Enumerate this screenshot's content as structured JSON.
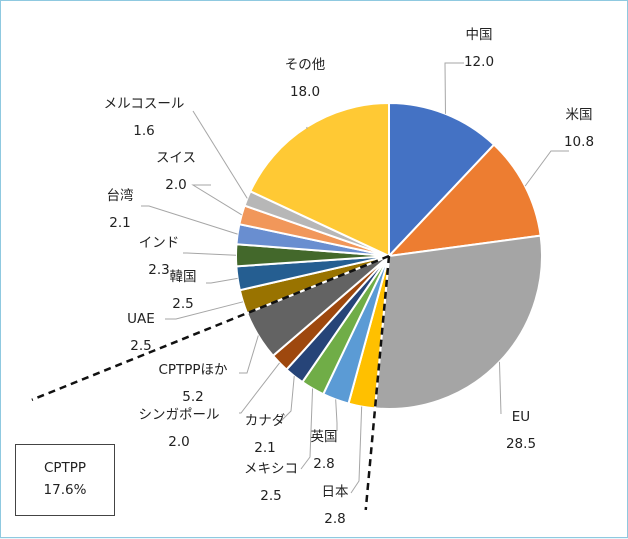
{
  "chart_data": {
    "type": "pie",
    "start_angle_deg": 0,
    "direction": "clockwise",
    "slices": [
      {
        "label": "中国",
        "value": "12.0",
        "color": "#4472c4"
      },
      {
        "label": "米国",
        "value": "10.8",
        "color": "#ed7d31"
      },
      {
        "label": "EU",
        "value": "28.5",
        "color": "#a5a5a5"
      },
      {
        "label": "日本",
        "value": "2.8",
        "color": "#ffc000"
      },
      {
        "label": "英国",
        "value": "2.8",
        "color": "#5b9bd5"
      },
      {
        "label": "メキシコ",
        "value": "2.5",
        "color": "#70ad47"
      },
      {
        "label": "カナダ",
        "value": "2.1",
        "color": "#264478"
      },
      {
        "label": "シンガポール",
        "value": "2.0",
        "color": "#9e480e"
      },
      {
        "label": "CPTPPほか",
        "value": "5.2",
        "color": "#636363"
      },
      {
        "label": "UAE",
        "value": "2.5",
        "color": "#997300"
      },
      {
        "label": "韓国",
        "value": "2.5",
        "color": "#255e91"
      },
      {
        "label": "インド",
        "value": "2.3",
        "color": "#43682b"
      },
      {
        "label": "台湾",
        "value": "2.1",
        "color": "#698ed0"
      },
      {
        "label": "スイス",
        "value": "2.0",
        "color": "#f1975a"
      },
      {
        "label": "メルコスール",
        "value": "1.6",
        "color": "#b7b7b7"
      },
      {
        "label": "その他",
        "value": "18.0",
        "color": "#ffc934"
      }
    ],
    "legend_box": {
      "title": "CPTPP",
      "value": "17.6%"
    }
  }
}
